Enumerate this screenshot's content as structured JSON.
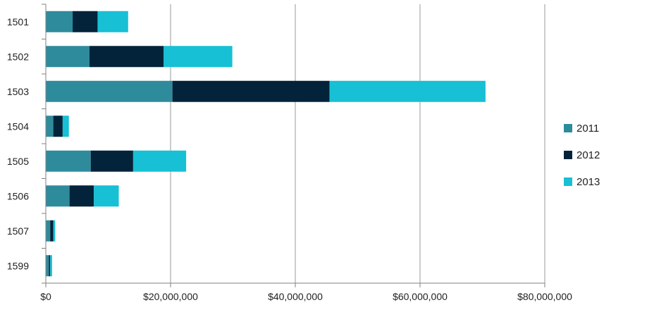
{
  "chart_data": {
    "type": "bar",
    "orientation": "horizontal",
    "stacked": true,
    "title": "",
    "xlabel": "",
    "ylabel": "",
    "categories": [
      "1501",
      "1502",
      "1503",
      "1504",
      "1505",
      "1506",
      "1507",
      "1599"
    ],
    "series": [
      {
        "name": "2011",
        "color": "#2e8b9c",
        "values": [
          4300000,
          7000000,
          20300000,
          1200000,
          7200000,
          3800000,
          700000,
          500000
        ]
      },
      {
        "name": "2012",
        "color": "#03233a",
        "values": [
          4000000,
          11900000,
          25200000,
          1500000,
          6800000,
          3900000,
          500000,
          200000
        ]
      },
      {
        "name": "2013",
        "color": "#17c0d4",
        "values": [
          4900000,
          11000000,
          25000000,
          1000000,
          8500000,
          4000000,
          300000,
          300000
        ]
      }
    ],
    "xlim": [
      0,
      80000000
    ],
    "xticks": [
      0,
      20000000,
      40000000,
      60000000,
      80000000
    ],
    "xtick_labels": [
      "$0",
      "$20,000,000",
      "$40,000,000",
      "$60,000,000",
      "$80,000,000"
    ],
    "grid": "vertical",
    "legend_position": "right"
  }
}
